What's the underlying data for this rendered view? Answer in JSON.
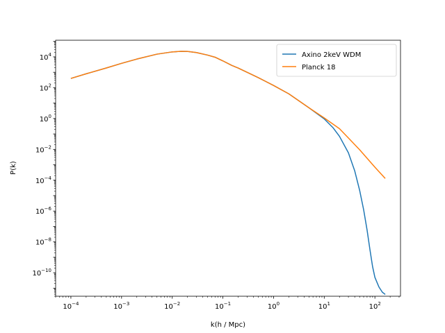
{
  "chart_data": {
    "type": "line",
    "title": "",
    "xlabel": "k(h / Mpc)",
    "ylabel": "P(k)",
    "xscale": "log",
    "yscale": "log",
    "xlim": [
      5e-05,
      320
    ],
    "ylim": [
      3e-12,
      120000.0
    ],
    "grid": false,
    "legend_position": "top-right",
    "x_ticks": [
      {
        "value": 0.0001,
        "base": "10",
        "exp": "−4"
      },
      {
        "value": 0.001,
        "base": "10",
        "exp": "−3"
      },
      {
        "value": 0.01,
        "base": "10",
        "exp": "−2"
      },
      {
        "value": 0.1,
        "base": "10",
        "exp": "−1"
      },
      {
        "value": 1,
        "base": "10",
        "exp": "0"
      },
      {
        "value": 10,
        "base": "10",
        "exp": "1"
      },
      {
        "value": 100,
        "base": "10",
        "exp": "2"
      }
    ],
    "y_ticks": [
      {
        "value": 1e-10,
        "base": "10",
        "exp": "−10"
      },
      {
        "value": 1e-08,
        "base": "10",
        "exp": "−8"
      },
      {
        "value": 1e-06,
        "base": "10",
        "exp": "−6"
      },
      {
        "value": 0.0001,
        "base": "10",
        "exp": "−4"
      },
      {
        "value": 0.01,
        "base": "10",
        "exp": "−2"
      },
      {
        "value": 1,
        "base": "10",
        "exp": "0"
      },
      {
        "value": 100,
        "base": "10",
        "exp": "2"
      },
      {
        "value": 10000,
        "base": "10",
        "exp": "4"
      }
    ],
    "series": [
      {
        "name": "Axino 2keV WDM",
        "color": "#1f77b4",
        "x": [
          0.0001,
          0.0002,
          0.0005,
          0.001,
          0.002,
          0.005,
          0.01,
          0.015,
          0.02,
          0.03,
          0.05,
          0.07,
          0.1,
          0.15,
          0.2,
          0.3,
          0.5,
          1,
          2,
          5,
          10,
          15,
          20,
          30,
          40,
          50,
          60,
          70,
          80,
          90,
          100,
          120,
          140,
          160
        ],
        "y": [
          400,
          800,
          1900,
          3800,
          7200,
          15000,
          21000,
          23000,
          22500,
          19000,
          13000,
          9500,
          5500,
          2800,
          1900,
          1000,
          450,
          140,
          40,
          5,
          0.95,
          0.25,
          0.07,
          0.006,
          0.0004,
          2.2e-05,
          1.2e-06,
          6e-08,
          3e-09,
          2.5e-10,
          5e-11,
          1.2e-11,
          5.5e-12,
          3.9e-12
        ]
      },
      {
        "name": "Planck 18",
        "color": "#ff7f0e",
        "x": [
          0.0001,
          0.0002,
          0.0005,
          0.001,
          0.002,
          0.005,
          0.01,
          0.015,
          0.02,
          0.03,
          0.05,
          0.07,
          0.1,
          0.15,
          0.2,
          0.3,
          0.5,
          1,
          2,
          5,
          10,
          20,
          50,
          100,
          160
        ],
        "y": [
          400,
          800,
          1900,
          3800,
          7200,
          15000,
          21000,
          23000,
          22500,
          19000,
          13000,
          9500,
          5500,
          2800,
          1900,
          1000,
          450,
          140,
          40,
          5,
          1.1,
          0.22,
          0.0095,
          0.0007,
          0.00013
        ]
      }
    ]
  }
}
